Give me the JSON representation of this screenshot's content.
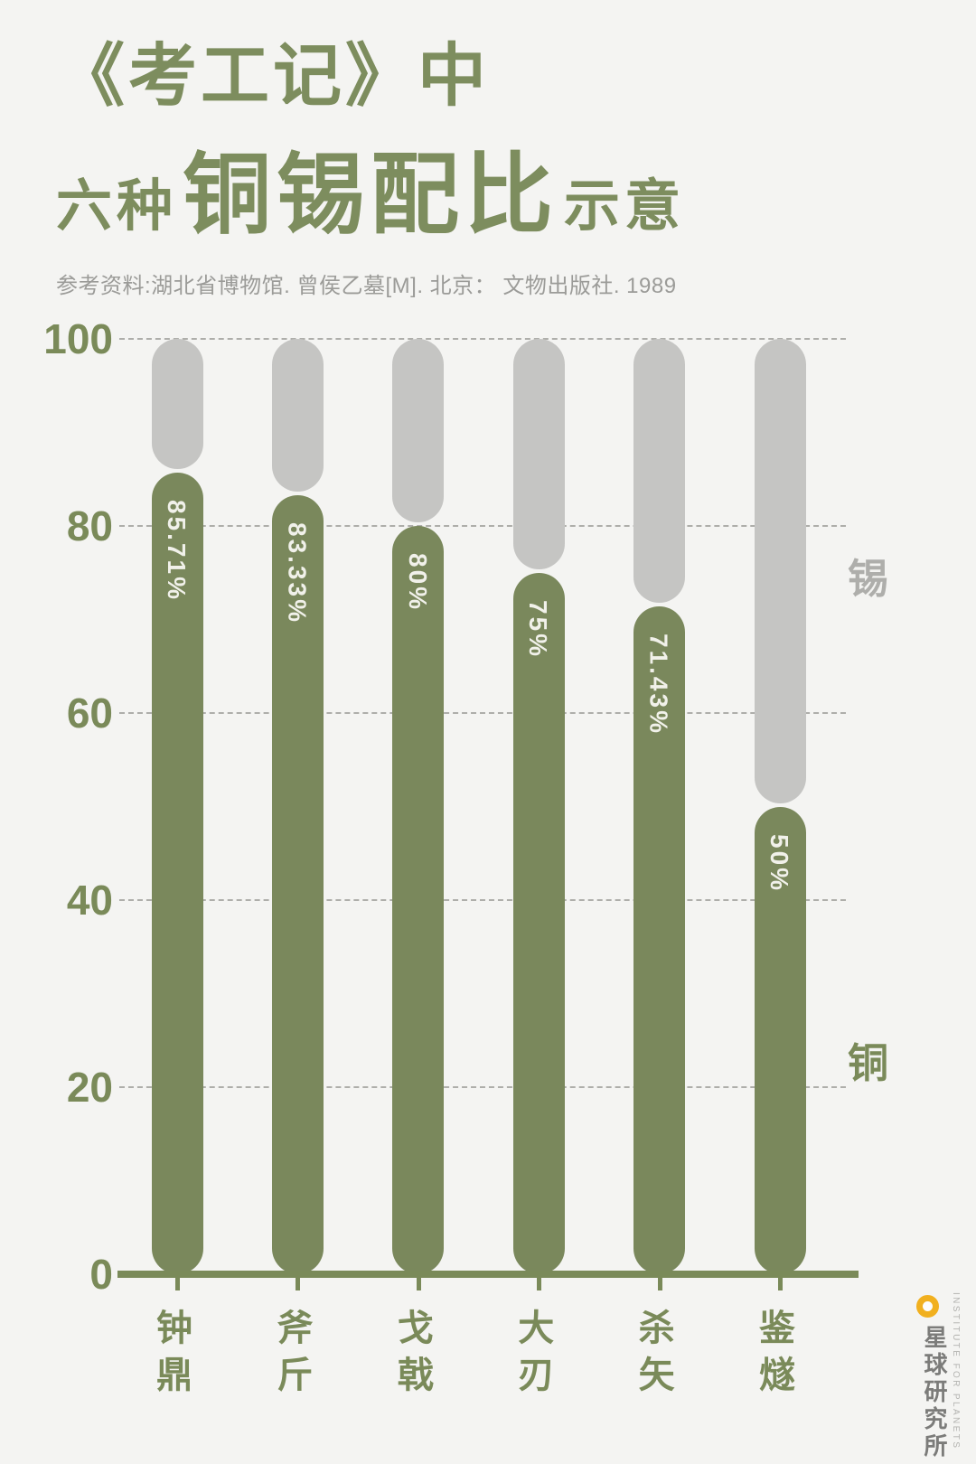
{
  "page": {
    "background": "#f4f4f2"
  },
  "header": {
    "title_line1": "《考工记》中",
    "title_line2_prefix": "六种",
    "title_line2_main": "铜锡配比",
    "title_line2_suffix": "示意",
    "source": "参考资料:湖北省博物馆. 曾侯乙墓[M]. 北京： 文物出版社. 1989"
  },
  "chart_data": {
    "type": "bar",
    "subtype": "stacked-rounded-pill-columns",
    "title": "《考工记》中六种铜锡配比示意",
    "categories": [
      "钟鼎",
      "斧斤",
      "戈戟",
      "大刃",
      "杀矢",
      "鉴燧"
    ],
    "series": [
      {
        "name": "铜",
        "values": [
          85.71,
          83.33,
          80,
          75,
          71.43,
          50
        ],
        "labels": [
          "85.71%",
          "83.33%",
          "80%",
          "75%",
          "71.43%",
          "50%"
        ],
        "color": "#7a885c"
      },
      {
        "name": "锡",
        "values": [
          14.29,
          16.67,
          20,
          25,
          28.57,
          50
        ],
        "color": "#c5c5c3"
      }
    ],
    "y_axis": {
      "ticks": [
        0,
        20,
        40,
        60,
        80,
        100
      ],
      "range": [
        0,
        100
      ],
      "grid": "dashed"
    },
    "right_labels": [
      {
        "text": "锡",
        "color": "#aeaeab"
      },
      {
        "text": "铜",
        "color": "#7a8a59"
      }
    ],
    "legend_position": "right-inline",
    "value_label_color": "#f1f1ea"
  },
  "footer_logo": {
    "cn": "星球研究所",
    "en": "INSTITUTE FOR PLANETS",
    "accent_color": "#f1b01f"
  },
  "colors": {
    "background": "#f4f4f2",
    "copper_green": "#7a885c",
    "tin_gray": "#c5c5c3",
    "title_green": "#7d8d5e",
    "axis_green": "#7a8a59",
    "gridline": "#aeaeaa",
    "subtitle_gray": "#9b9b98"
  }
}
